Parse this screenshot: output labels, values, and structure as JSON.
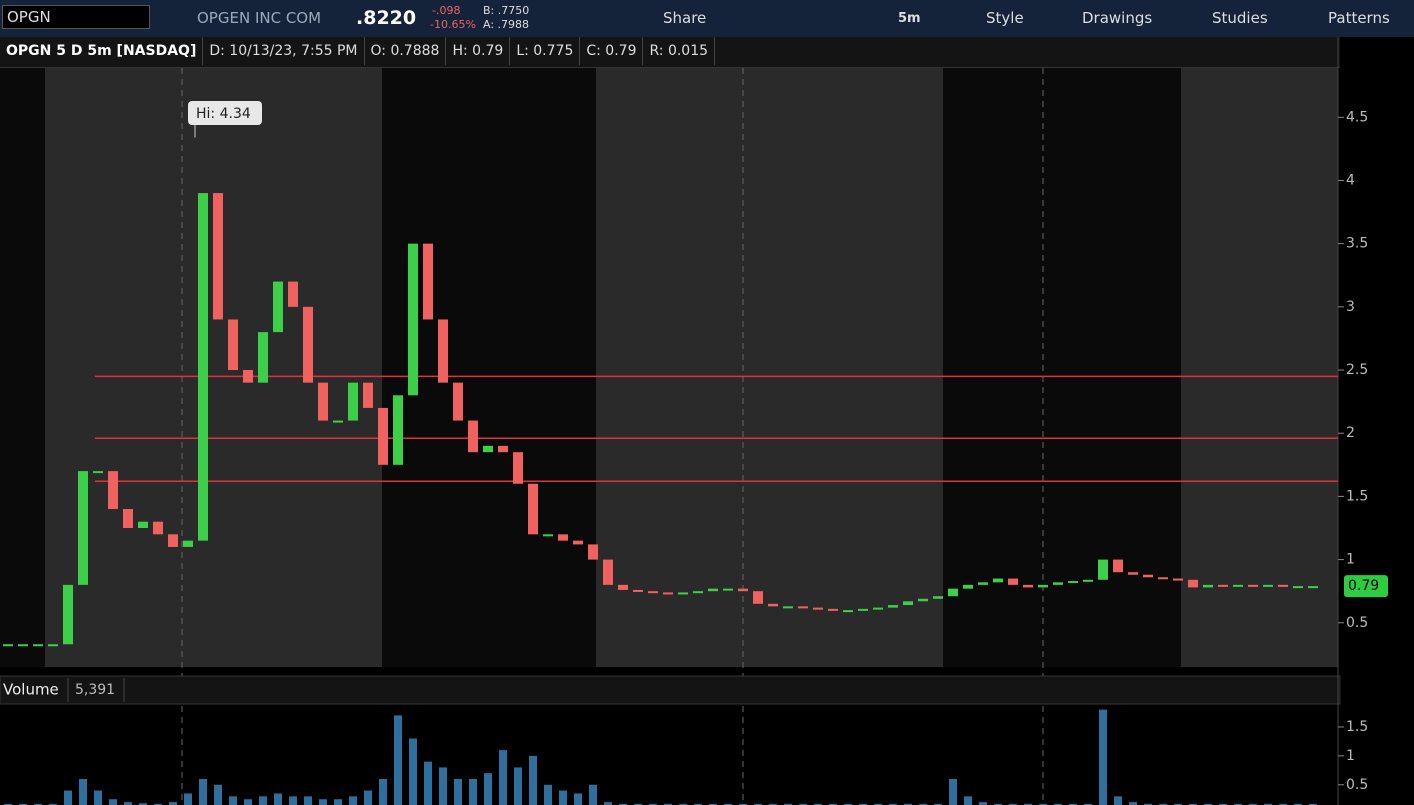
{
  "toolbar": {
    "symbol": "OPGN",
    "company": "OPGEN INC COM",
    "last": ".8220",
    "change": "-.098",
    "change_pct": "-10.65%",
    "bid": "B: .7750",
    "ask": "A: .7988",
    "buttons": [
      "Share",
      "5m",
      "Style",
      "Drawings",
      "Studies",
      "Patterns"
    ]
  },
  "header": {
    "title": "OPGN 5 D 5m [NASDAQ]",
    "fields": [
      "D: 10/13/23, 7:55 PM",
      "O: 0.7888",
      "H: 0.79",
      "L: 0.775",
      "C: 0.79",
      "R: 0.015"
    ]
  },
  "chart_data": [
    {
      "type": "candles",
      "values": [
        0.33,
        0.33,
        0.33,
        0.33,
        0.8,
        1.7,
        1.7,
        1.4,
        1.25,
        1.3,
        1.2,
        1.1,
        1.15,
        3.9,
        2.9,
        2.5,
        2.4,
        2.8,
        3.2,
        3.0,
        2.4,
        2.1,
        2.1,
        2.4,
        2.2,
        1.75,
        2.3,
        3.5,
        2.9,
        2.4,
        2.1,
        1.85,
        1.9,
        1.85,
        1.6,
        1.2,
        1.2,
        1.15,
        1.12,
        1.0,
        0.8,
        0.76,
        0.75,
        0.74,
        0.73,
        0.74,
        0.75,
        0.77,
        0.77,
        0.75,
        0.65,
        0.63,
        0.63,
        0.62,
        0.61,
        0.6,
        0.6,
        0.61,
        0.62,
        0.64,
        0.67,
        0.69,
        0.71,
        0.77,
        0.8,
        0.82,
        0.85,
        0.8,
        0.78,
        0.8,
        0.82,
        0.83,
        0.84,
        1.0,
        0.9,
        0.88,
        0.86,
        0.85,
        0.84,
        0.78,
        0.8,
        0.79,
        0.8,
        0.79,
        0.8,
        0.79,
        0.79,
        0.79
      ],
      "ylim": [
        0.15,
        4.89
      ],
      "yticks": [
        0.5,
        1,
        1.5,
        2,
        2.5,
        3,
        3.5,
        4,
        4.5
      ],
      "up_color": "#3ecf4a",
      "down_color": "#f0625f",
      "hlines": [
        2.45,
        1.96,
        1.62
      ],
      "hline_color": "#e0323a",
      "annotation": "Hi: 4.34",
      "annotation_value": 4.34,
      "last_label": "0.79",
      "last_value": 0.79
    },
    {
      "type": "bar",
      "title": "Volume",
      "value_label": "5,391",
      "values": [
        0.17,
        0.17,
        0.17,
        0.17,
        0.4,
        0.6,
        0.4,
        0.25,
        0.2,
        0.18,
        0.17,
        0.2,
        0.35,
        0.6,
        0.5,
        0.3,
        0.25,
        0.3,
        0.35,
        0.3,
        0.3,
        0.25,
        0.25,
        0.3,
        0.4,
        0.6,
        1.7,
        1.3,
        0.9,
        0.8,
        0.6,
        0.6,
        0.7,
        1.1,
        0.8,
        1.0,
        0.5,
        0.4,
        0.35,
        0.5,
        0.2,
        0.17,
        0.17,
        0.17,
        0.17,
        0.17,
        0.17,
        0.17,
        0.17,
        0.17,
        0.17,
        0.17,
        0.17,
        0.17,
        0.17,
        0.17,
        0.17,
        0.17,
        0.17,
        0.17,
        0.17,
        0.17,
        0.17,
        0.6,
        0.3,
        0.2,
        0.17,
        0.17,
        0.17,
        0.17,
        0.17,
        0.17,
        0.17,
        1.8,
        0.3,
        0.2,
        0.17,
        0.17,
        0.17,
        0.17,
        0.17,
        0.17,
        0.17,
        0.17,
        0.17,
        0.17,
        0.17,
        0.17
      ],
      "ylim": [
        0.15,
        1.88
      ],
      "yticks": [
        0.5,
        1,
        1.5
      ],
      "color": "#2e6f9e"
    }
  ]
}
